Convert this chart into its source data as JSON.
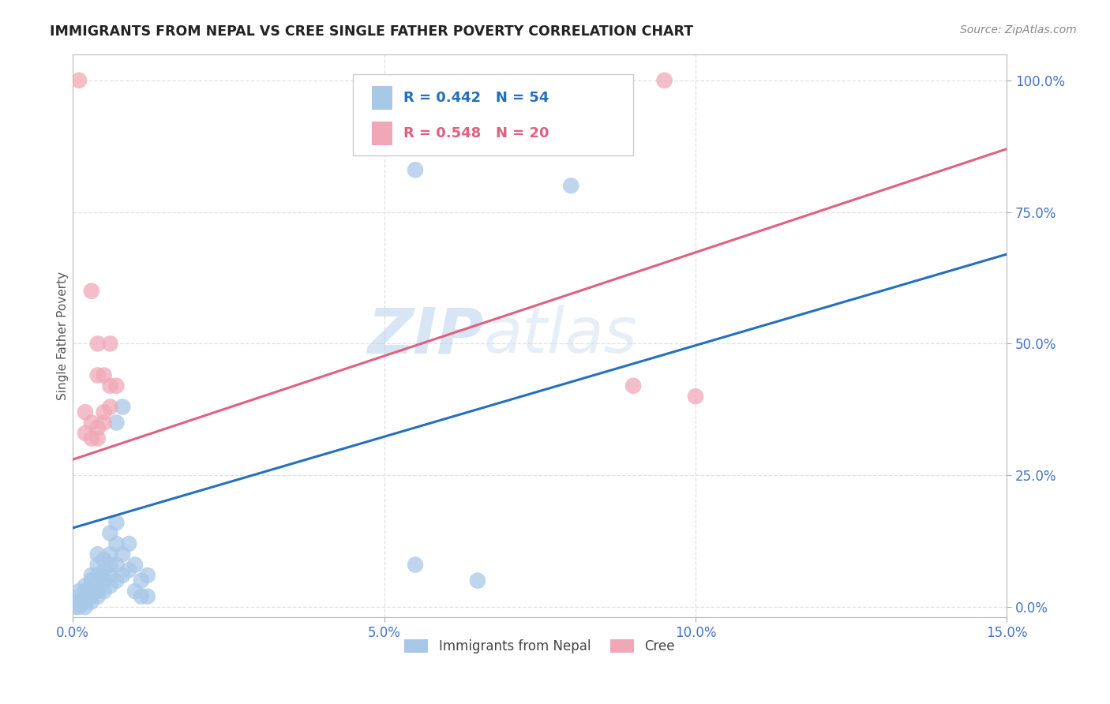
{
  "title": "IMMIGRANTS FROM NEPAL VS CREE SINGLE FATHER POVERTY CORRELATION CHART",
  "source": "Source: ZipAtlas.com",
  "ylabel_label": "Single Father Poverty",
  "x_min": 0.0,
  "x_max": 0.15,
  "y_min": -0.02,
  "y_max": 1.05,
  "x_ticks": [
    0.0,
    0.05,
    0.1,
    0.15
  ],
  "x_tick_labels": [
    "0.0%",
    "5.0%",
    "10.0%",
    "15.0%"
  ],
  "y_ticks": [
    0.0,
    0.25,
    0.5,
    0.75,
    1.0
  ],
  "y_tick_labels": [
    "0.0%",
    "25.0%",
    "50.0%",
    "75.0%",
    "100.0%"
  ],
  "nepal_R": 0.442,
  "nepal_N": 54,
  "cree_R": 0.548,
  "cree_N": 20,
  "nepal_color": "#a8c8e8",
  "cree_color": "#f0a8b8",
  "nepal_line_color": "#2470c0",
  "cree_line_color": "#e06080",
  "nepal_scatter": [
    [
      0.0005,
      0.0
    ],
    [
      0.001,
      0.0
    ],
    [
      0.001,
      0.01
    ],
    [
      0.001,
      0.02
    ],
    [
      0.001,
      0.03
    ],
    [
      0.0015,
      0.01
    ],
    [
      0.002,
      0.0
    ],
    [
      0.002,
      0.01
    ],
    [
      0.002,
      0.02
    ],
    [
      0.002,
      0.03
    ],
    [
      0.002,
      0.04
    ],
    [
      0.0025,
      0.02
    ],
    [
      0.003,
      0.01
    ],
    [
      0.003,
      0.02
    ],
    [
      0.003,
      0.03
    ],
    [
      0.003,
      0.04
    ],
    [
      0.003,
      0.05
    ],
    [
      0.003,
      0.06
    ],
    [
      0.004,
      0.02
    ],
    [
      0.004,
      0.03
    ],
    [
      0.004,
      0.04
    ],
    [
      0.004,
      0.05
    ],
    [
      0.004,
      0.06
    ],
    [
      0.004,
      0.08
    ],
    [
      0.004,
      0.1
    ],
    [
      0.005,
      0.03
    ],
    [
      0.005,
      0.05
    ],
    [
      0.005,
      0.07
    ],
    [
      0.005,
      0.09
    ],
    [
      0.006,
      0.04
    ],
    [
      0.006,
      0.06
    ],
    [
      0.006,
      0.08
    ],
    [
      0.006,
      0.1
    ],
    [
      0.006,
      0.14
    ],
    [
      0.007,
      0.05
    ],
    [
      0.007,
      0.08
    ],
    [
      0.007,
      0.12
    ],
    [
      0.007,
      0.16
    ],
    [
      0.007,
      0.35
    ],
    [
      0.008,
      0.06
    ],
    [
      0.008,
      0.1
    ],
    [
      0.008,
      0.38
    ],
    [
      0.009,
      0.07
    ],
    [
      0.009,
      0.12
    ],
    [
      0.01,
      0.03
    ],
    [
      0.01,
      0.08
    ],
    [
      0.011,
      0.02
    ],
    [
      0.011,
      0.05
    ],
    [
      0.012,
      0.02
    ],
    [
      0.012,
      0.06
    ],
    [
      0.055,
      0.83
    ],
    [
      0.055,
      0.08
    ],
    [
      0.065,
      0.05
    ],
    [
      0.08,
      0.8
    ]
  ],
  "cree_scatter": [
    [
      0.001,
      1.0
    ],
    [
      0.002,
      0.37
    ],
    [
      0.002,
      0.33
    ],
    [
      0.003,
      0.32
    ],
    [
      0.003,
      0.35
    ],
    [
      0.003,
      0.6
    ],
    [
      0.004,
      0.32
    ],
    [
      0.004,
      0.34
    ],
    [
      0.004,
      0.44
    ],
    [
      0.004,
      0.5
    ],
    [
      0.005,
      0.35
    ],
    [
      0.005,
      0.37
    ],
    [
      0.005,
      0.44
    ],
    [
      0.006,
      0.38
    ],
    [
      0.006,
      0.42
    ],
    [
      0.006,
      0.5
    ],
    [
      0.007,
      0.42
    ],
    [
      0.09,
      0.42
    ],
    [
      0.095,
      1.0
    ],
    [
      0.1,
      0.4
    ]
  ],
  "nepal_trendline": [
    [
      0.0,
      0.15
    ],
    [
      0.15,
      0.67
    ]
  ],
  "cree_trendline": [
    [
      0.0,
      0.28
    ],
    [
      0.15,
      0.87
    ]
  ],
  "watermark_zip": "ZIP",
  "watermark_atlas": "atlas",
  "background_color": "#ffffff",
  "grid_color": "#e0e0e0",
  "tick_color": "#4472c4",
  "ylabel_color": "#555555",
  "title_color": "#222222",
  "source_color": "#888888",
  "legend_facecolor": "#ffffff",
  "legend_edgecolor": "#cccccc"
}
